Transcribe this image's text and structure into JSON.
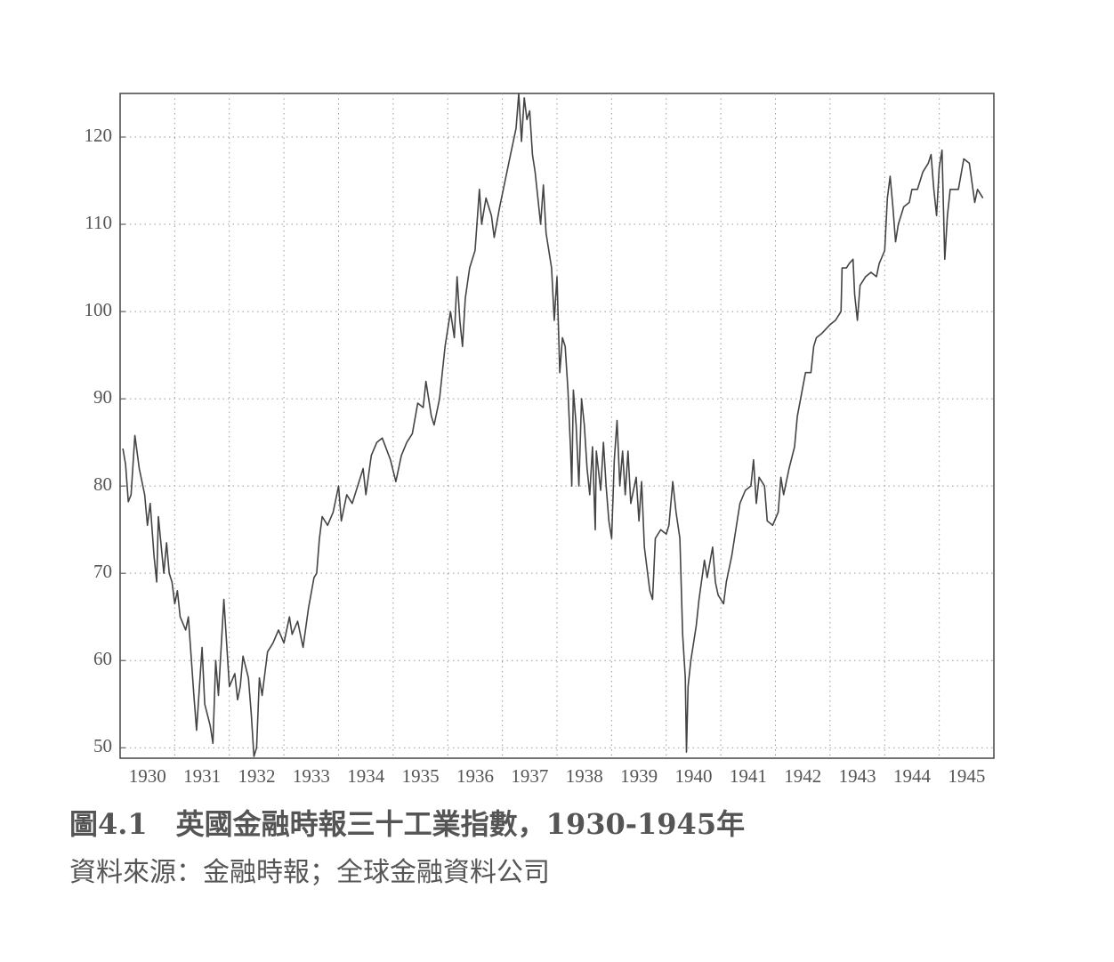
{
  "chart_data": {
    "type": "line",
    "title": "圖4.1　英國金融時報三十工業指數，1930-1945年",
    "subtitle": "資料來源：金融時報；全球金融資料公司",
    "color": "#444444",
    "grid": true,
    "xlim": [
      1930,
      1946
    ],
    "ylim": [
      48.8,
      125
    ],
    "yticks": [
      50,
      60,
      70,
      80,
      90,
      100,
      110,
      120
    ],
    "xticks": [
      {
        "value": 1930.5,
        "label": "1930"
      },
      {
        "value": 1931.5,
        "label": "1931"
      },
      {
        "value": 1932.5,
        "label": "1932"
      },
      {
        "value": 1933.5,
        "label": "1933"
      },
      {
        "value": 1934.5,
        "label": "1934"
      },
      {
        "value": 1935.5,
        "label": "1935"
      },
      {
        "value": 1936.5,
        "label": "1936"
      },
      {
        "value": 1937.5,
        "label": "1937"
      },
      {
        "value": 1938.5,
        "label": "1938"
      },
      {
        "value": 1939.5,
        "label": "1939"
      },
      {
        "value": 1940.5,
        "label": "1940"
      },
      {
        "value": 1941.5,
        "label": "1941"
      },
      {
        "value": 1942.5,
        "label": "1942"
      },
      {
        "value": 1943.5,
        "label": "1943"
      },
      {
        "value": 1944.5,
        "label": "1944"
      },
      {
        "value": 1945.5,
        "label": "1945"
      }
    ],
    "xgrid": [
      1931,
      1932,
      1933,
      1934,
      1935,
      1936,
      1937,
      1938,
      1939,
      1940,
      1941,
      1942,
      1943,
      1944,
      1945
    ],
    "x": [
      1930.05,
      1930.1,
      1930.15,
      1930.2,
      1930.27,
      1930.35,
      1930.45,
      1930.5,
      1930.55,
      1930.62,
      1930.67,
      1930.7,
      1930.8,
      1930.85,
      1930.9,
      1930.95,
      1931.0,
      1931.05,
      1931.1,
      1931.2,
      1931.25,
      1931.35,
      1931.4,
      1931.5,
      1931.55,
      1931.65,
      1931.7,
      1931.75,
      1931.8,
      1931.9,
      1931.95,
      1932.0,
      1932.1,
      1932.15,
      1932.2,
      1932.25,
      1932.35,
      1932.4,
      1932.45,
      1932.5,
      1932.55,
      1932.6,
      1932.7,
      1932.8,
      1932.9,
      1933.0,
      1933.1,
      1933.15,
      1933.25,
      1933.35,
      1933.45,
      1933.55,
      1933.6,
      1933.65,
      1933.7,
      1933.8,
      1933.9,
      1934.0,
      1934.05,
      1934.15,
      1934.25,
      1934.35,
      1934.45,
      1934.5,
      1934.6,
      1934.7,
      1934.8,
      1934.95,
      1935.05,
      1935.15,
      1935.25,
      1935.35,
      1935.45,
      1935.55,
      1935.6,
      1935.7,
      1935.75,
      1935.85,
      1935.95,
      1936.05,
      1936.12,
      1936.17,
      1936.22,
      1936.27,
      1936.32,
      1936.4,
      1936.5,
      1936.58,
      1936.62,
      1936.7,
      1936.8,
      1936.85,
      1936.95,
      1937.05,
      1937.15,
      1937.25,
      1937.3,
      1937.35,
      1937.4,
      1937.45,
      1937.5,
      1937.55,
      1937.6,
      1937.65,
      1937.7,
      1937.75,
      1937.8,
      1937.9,
      1937.95,
      1938.0,
      1938.05,
      1938.1,
      1938.15,
      1938.2,
      1938.25,
      1938.27,
      1938.3,
      1938.35,
      1938.4,
      1938.45,
      1938.5,
      1938.55,
      1938.6,
      1938.65,
      1938.7,
      1938.72,
      1938.8,
      1938.85,
      1938.9,
      1938.95,
      1939.0,
      1939.05,
      1939.1,
      1939.15,
      1939.2,
      1939.25,
      1939.3,
      1939.35,
      1939.45,
      1939.5,
      1939.55,
      1939.6,
      1939.7,
      1939.75,
      1939.8,
      1939.9,
      1940.0,
      1940.05,
      1940.12,
      1940.18,
      1940.25,
      1940.3,
      1940.35,
      1940.37,
      1940.4,
      1940.45,
      1940.55,
      1940.6,
      1940.7,
      1940.75,
      1940.85,
      1940.9,
      1940.95,
      1941.05,
      1941.1,
      1941.2,
      1941.3,
      1941.35,
      1941.45,
      1941.55,
      1941.6,
      1941.65,
      1941.7,
      1941.8,
      1941.85,
      1941.95,
      1942.05,
      1942.1,
      1942.15,
      1942.25,
      1942.35,
      1942.4,
      1942.55,
      1942.65,
      1942.7,
      1942.75,
      1942.85,
      1943.0,
      1943.1,
      1943.2,
      1943.22,
      1943.3,
      1943.35,
      1943.42,
      1943.45,
      1943.5,
      1943.55,
      1943.65,
      1943.75,
      1943.85,
      1943.9,
      1944.0,
      1944.05,
      1944.1,
      1944.15,
      1944.2,
      1944.25,
      1944.35,
      1944.45,
      1944.5,
      1944.6,
      1944.7,
      1944.8,
      1944.85,
      1944.9,
      1944.95,
      1945.0,
      1945.05,
      1945.1,
      1945.15,
      1945.2,
      1945.35,
      1945.45,
      1945.55,
      1945.65,
      1945.7,
      1945.8
    ],
    "values": [
      84.3,
      82.5,
      78.2,
      79,
      85.8,
      82,
      79,
      75.5,
      78,
      72,
      69,
      76.5,
      70,
      73.5,
      70,
      69,
      66.5,
      68,
      65,
      63.5,
      65,
      56,
      52,
      61.5,
      55,
      52.5,
      50.5,
      60,
      56,
      67,
      62,
      57,
      58.5,
      55.5,
      57,
      60.5,
      58,
      54,
      49,
      50,
      58,
      56,
      61,
      62,
      63.5,
      62,
      65,
      63,
      64.5,
      61.5,
      66,
      69.5,
      70,
      74,
      76.5,
      75.5,
      77,
      80,
      76,
      79,
      78,
      80,
      82,
      79,
      83.5,
      85,
      85.5,
      83,
      80.5,
      83.5,
      85,
      86,
      89.5,
      89,
      92,
      88,
      87,
      90,
      96,
      100,
      97,
      104,
      99,
      96,
      101.5,
      105,
      107,
      114,
      110,
      113,
      111,
      108.5,
      112,
      115,
      118,
      121,
      125,
      119.5,
      124.5,
      122,
      123,
      118,
      116,
      113,
      110,
      114.5,
      109,
      105,
      99,
      104,
      93,
      97,
      96,
      91,
      84,
      80,
      91,
      87,
      80,
      90,
      87,
      82,
      79,
      84.5,
      75,
      84,
      79.5,
      85,
      80,
      76,
      74,
      83,
      87.5,
      80,
      84,
      79,
      84,
      78,
      81,
      76,
      80.5,
      73,
      68,
      67,
      74,
      75,
      74.5,
      75.5,
      80.5,
      77,
      74,
      63,
      58,
      49.5,
      57,
      60,
      64,
      67,
      71.5,
      69.5,
      73,
      69,
      67.5,
      66.5,
      69,
      72,
      76,
      78,
      79.5,
      80,
      83,
      78,
      81,
      80,
      76,
      75.5,
      77,
      81,
      79,
      82,
      84.5,
      88,
      93,
      93,
      96,
      97,
      97.5,
      98.5,
      99,
      100,
      105,
      105,
      105.5,
      106,
      102,
      99,
      103,
      104,
      104.5,
      104,
      105.5,
      107,
      113,
      115.5,
      112,
      108,
      110,
      112,
      112.5,
      114,
      114,
      116,
      117,
      118,
      114,
      111,
      116.5,
      118.5,
      106,
      111,
      114,
      114,
      117.5,
      117,
      112.5,
      114,
      113
    ]
  }
}
